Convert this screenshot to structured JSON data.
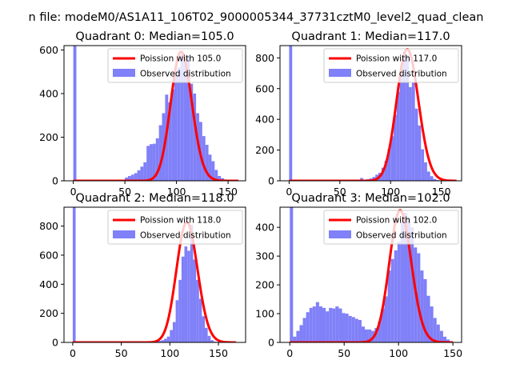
{
  "figure": {
    "suptitle": "n file: modeM0/AS1A11_106T02_9000005344_37731cztM0_level2_quad_clean"
  },
  "chart_data": [
    {
      "type": "bar",
      "title": "Quadrant 0: Median=105.0",
      "xlim": [
        -9,
        167
      ],
      "ylim": [
        0,
        620
      ],
      "xticks": [
        0,
        50,
        100,
        150
      ],
      "yticks": [
        0,
        200,
        400,
        600
      ],
      "legend": [
        "Poission with 105.0",
        "Observed distribution"
      ],
      "legend_loc": "upper right",
      "poisson_mean": 105,
      "poisson_x_range": [
        0,
        160
      ],
      "series": [
        {
          "name": "Observed distribution",
          "bins": [
            {
              "x0": 0,
              "x1": 3,
              "value": 620
            },
            {
              "x0": 47,
              "x1": 50,
              "value": 4
            },
            {
              "x0": 50,
              "x1": 53,
              "value": 15
            },
            {
              "x0": 53,
              "x1": 56,
              "value": 22
            },
            {
              "x0": 56,
              "x1": 59,
              "value": 28
            },
            {
              "x0": 59,
              "x1": 62,
              "value": 35
            },
            {
              "x0": 62,
              "x1": 65,
              "value": 48
            },
            {
              "x0": 65,
              "x1": 68,
              "value": 65
            },
            {
              "x0": 68,
              "x1": 71,
              "value": 85
            },
            {
              "x0": 71,
              "x1": 74,
              "value": 160
            },
            {
              "x0": 74,
              "x1": 77,
              "value": 168
            },
            {
              "x0": 77,
              "x1": 80,
              "value": 170
            },
            {
              "x0": 80,
              "x1": 83,
              "value": 195
            },
            {
              "x0": 83,
              "x1": 86,
              "value": 255
            },
            {
              "x0": 86,
              "x1": 89,
              "value": 310
            },
            {
              "x0": 89,
              "x1": 92,
              "value": 395
            },
            {
              "x0": 92,
              "x1": 95,
              "value": 360
            },
            {
              "x0": 95,
              "x1": 98,
              "value": 420
            },
            {
              "x0": 98,
              "x1": 101,
              "value": 500
            },
            {
              "x0": 101,
              "x1": 104,
              "value": 520
            },
            {
              "x0": 104,
              "x1": 107,
              "value": 580
            },
            {
              "x0": 107,
              "x1": 110,
              "value": 570
            },
            {
              "x0": 110,
              "x1": 113,
              "value": 575
            },
            {
              "x0": 113,
              "x1": 116,
              "value": 445
            },
            {
              "x0": 116,
              "x1": 119,
              "value": 400
            },
            {
              "x0": 119,
              "x1": 122,
              "value": 310
            },
            {
              "x0": 122,
              "x1": 125,
              "value": 270
            },
            {
              "x0": 125,
              "x1": 128,
              "value": 205
            },
            {
              "x0": 128,
              "x1": 131,
              "value": 165
            },
            {
              "x0": 131,
              "x1": 134,
              "value": 120
            },
            {
              "x0": 134,
              "x1": 137,
              "value": 90
            },
            {
              "x0": 137,
              "x1": 140,
              "value": 50
            },
            {
              "x0": 140,
              "x1": 143,
              "value": 22
            },
            {
              "x0": 143,
              "x1": 146,
              "value": 12
            },
            {
              "x0": 146,
              "x1": 149,
              "value": 6
            }
          ]
        }
      ]
    },
    {
      "type": "bar",
      "title": "Quadrant 1: Median=117.0",
      "xlim": [
        -9,
        170
      ],
      "ylim": [
        0,
        880
      ],
      "xticks": [
        0,
        50,
        100,
        150
      ],
      "yticks": [
        0,
        200,
        400,
        600,
        800
      ],
      "legend": [
        "Poission with 117.0",
        "Observed distribution"
      ],
      "legend_loc": "upper right",
      "poisson_mean": 117,
      "poisson_x_range": [
        0,
        165
      ],
      "series": [
        {
          "name": "Observed distribution",
          "bins": [
            {
              "x0": 0,
              "x1": 3,
              "value": 880
            },
            {
              "x0": 61,
              "x1": 64,
              "value": 5
            },
            {
              "x0": 64,
              "x1": 67,
              "value": 5
            },
            {
              "x0": 70,
              "x1": 73,
              "value": 18
            },
            {
              "x0": 73,
              "x1": 76,
              "value": 8
            },
            {
              "x0": 76,
              "x1": 79,
              "value": 10
            },
            {
              "x0": 79,
              "x1": 82,
              "value": 15
            },
            {
              "x0": 82,
              "x1": 85,
              "value": 25
            },
            {
              "x0": 85,
              "x1": 88,
              "value": 40
            },
            {
              "x0": 88,
              "x1": 91,
              "value": 52
            },
            {
              "x0": 91,
              "x1": 94,
              "value": 85
            },
            {
              "x0": 94,
              "x1": 97,
              "value": 130
            },
            {
              "x0": 97,
              "x1": 100,
              "value": 205
            },
            {
              "x0": 100,
              "x1": 103,
              "value": 290
            },
            {
              "x0": 103,
              "x1": 106,
              "value": 430
            },
            {
              "x0": 106,
              "x1": 109,
              "value": 580
            },
            {
              "x0": 109,
              "x1": 112,
              "value": 700
            },
            {
              "x0": 112,
              "x1": 115,
              "value": 840
            },
            {
              "x0": 115,
              "x1": 118,
              "value": 820
            },
            {
              "x0": 118,
              "x1": 121,
              "value": 610
            },
            {
              "x0": 121,
              "x1": 124,
              "value": 640
            },
            {
              "x0": 124,
              "x1": 127,
              "value": 470
            },
            {
              "x0": 127,
              "x1": 130,
              "value": 360
            },
            {
              "x0": 130,
              "x1": 133,
              "value": 205
            },
            {
              "x0": 133,
              "x1": 136,
              "value": 120
            },
            {
              "x0": 136,
              "x1": 139,
              "value": 60
            },
            {
              "x0": 139,
              "x1": 142,
              "value": 30
            },
            {
              "x0": 142,
              "x1": 145,
              "value": 12
            },
            {
              "x0": 145,
              "x1": 148,
              "value": 5
            }
          ]
        }
      ]
    },
    {
      "type": "bar",
      "title": "Quadrant 2: Median=118.0",
      "xlim": [
        -9,
        178
      ],
      "ylim": [
        0,
        930
      ],
      "xticks": [
        0,
        50,
        100,
        150
      ],
      "yticks": [
        0,
        200,
        400,
        600,
        800
      ],
      "legend": [
        "Poission with 118.0",
        "Observed distribution"
      ],
      "legend_loc": "upper right",
      "poisson_mean": 118,
      "poisson_x_range": [
        0,
        168
      ],
      "series": [
        {
          "name": "Observed distribution",
          "bins": [
            {
              "x0": 0,
              "x1": 3,
              "value": 930
            },
            {
              "x0": 70,
              "x1": 73,
              "value": 3
            },
            {
              "x0": 76,
              "x1": 79,
              "value": 4
            },
            {
              "x0": 82,
              "x1": 85,
              "value": 6
            },
            {
              "x0": 88,
              "x1": 91,
              "value": 10
            },
            {
              "x0": 91,
              "x1": 94,
              "value": 15
            },
            {
              "x0": 94,
              "x1": 97,
              "value": 25
            },
            {
              "x0": 97,
              "x1": 100,
              "value": 40
            },
            {
              "x0": 100,
              "x1": 103,
              "value": 85
            },
            {
              "x0": 103,
              "x1": 106,
              "value": 140
            },
            {
              "x0": 106,
              "x1": 109,
              "value": 290
            },
            {
              "x0": 109,
              "x1": 112,
              "value": 430
            },
            {
              "x0": 112,
              "x1": 115,
              "value": 590
            },
            {
              "x0": 115,
              "x1": 118,
              "value": 660
            },
            {
              "x0": 118,
              "x1": 121,
              "value": 630
            },
            {
              "x0": 121,
              "x1": 124,
              "value": 810
            },
            {
              "x0": 124,
              "x1": 127,
              "value": 570
            },
            {
              "x0": 127,
              "x1": 130,
              "value": 430
            },
            {
              "x0": 130,
              "x1": 133,
              "value": 300
            },
            {
              "x0": 133,
              "x1": 136,
              "value": 180
            },
            {
              "x0": 136,
              "x1": 139,
              "value": 100
            },
            {
              "x0": 139,
              "x1": 142,
              "value": 45
            },
            {
              "x0": 142,
              "x1": 145,
              "value": 15
            },
            {
              "x0": 145,
              "x1": 148,
              "value": 5
            }
          ]
        }
      ]
    },
    {
      "type": "bar",
      "title": "Quadrant 3: Median=102.0",
      "xlim": [
        -9,
        158
      ],
      "ylim": [
        0,
        470
      ],
      "xticks": [
        0,
        50,
        100,
        150
      ],
      "yticks": [
        0,
        100,
        200,
        300,
        400
      ],
      "legend": [
        "Poission with 102.0",
        "Observed distribution"
      ],
      "legend_loc": "upper right",
      "poisson_mean": 102,
      "poisson_x_range": [
        0,
        150
      ],
      "series": [
        {
          "name": "Observed distribution",
          "bins": [
            {
              "x0": 0,
              "x1": 3,
              "value": 470
            },
            {
              "x0": 3,
              "x1": 6,
              "value": 20
            },
            {
              "x0": 6,
              "x1": 9,
              "value": 40
            },
            {
              "x0": 9,
              "x1": 12,
              "value": 60
            },
            {
              "x0": 12,
              "x1": 15,
              "value": 85
            },
            {
              "x0": 15,
              "x1": 18,
              "value": 105
            },
            {
              "x0": 18,
              "x1": 21,
              "value": 120
            },
            {
              "x0": 21,
              "x1": 24,
              "value": 125
            },
            {
              "x0": 24,
              "x1": 27,
              "value": 140
            },
            {
              "x0": 27,
              "x1": 30,
              "value": 125
            },
            {
              "x0": 30,
              "x1": 33,
              "value": 120
            },
            {
              "x0": 33,
              "x1": 36,
              "value": 108
            },
            {
              "x0": 36,
              "x1": 39,
              "value": 120
            },
            {
              "x0": 39,
              "x1": 42,
              "value": 118
            },
            {
              "x0": 42,
              "x1": 45,
              "value": 125
            },
            {
              "x0": 45,
              "x1": 48,
              "value": 118
            },
            {
              "x0": 48,
              "x1": 51,
              "value": 102
            },
            {
              "x0": 51,
              "x1": 54,
              "value": 100
            },
            {
              "x0": 54,
              "x1": 57,
              "value": 92
            },
            {
              "x0": 57,
              "x1": 60,
              "value": 88
            },
            {
              "x0": 60,
              "x1": 63,
              "value": 82
            },
            {
              "x0": 63,
              "x1": 66,
              "value": 78
            },
            {
              "x0": 66,
              "x1": 69,
              "value": 55
            },
            {
              "x0": 69,
              "x1": 72,
              "value": 45
            },
            {
              "x0": 72,
              "x1": 75,
              "value": 45
            },
            {
              "x0": 75,
              "x1": 78,
              "value": 40
            },
            {
              "x0": 78,
              "x1": 81,
              "value": 50
            },
            {
              "x0": 81,
              "x1": 84,
              "value": 72
            },
            {
              "x0": 84,
              "x1": 87,
              "value": 118
            },
            {
              "x0": 87,
              "x1": 90,
              "value": 160
            },
            {
              "x0": 90,
              "x1": 93,
              "value": 250
            },
            {
              "x0": 93,
              "x1": 96,
              "value": 290
            },
            {
              "x0": 96,
              "x1": 99,
              "value": 320
            },
            {
              "x0": 99,
              "x1": 102,
              "value": 350
            },
            {
              "x0": 102,
              "x1": 105,
              "value": 420
            },
            {
              "x0": 105,
              "x1": 108,
              "value": 450
            },
            {
              "x0": 108,
              "x1": 111,
              "value": 430
            },
            {
              "x0": 111,
              "x1": 114,
              "value": 400
            },
            {
              "x0": 114,
              "x1": 117,
              "value": 330
            },
            {
              "x0": 117,
              "x1": 120,
              "value": 310
            },
            {
              "x0": 120,
              "x1": 123,
              "value": 250
            },
            {
              "x0": 123,
              "x1": 126,
              "value": 220
            },
            {
              "x0": 126,
              "x1": 129,
              "value": 162
            },
            {
              "x0": 129,
              "x1": 132,
              "value": 125
            },
            {
              "x0": 132,
              "x1": 135,
              "value": 85
            },
            {
              "x0": 135,
              "x1": 138,
              "value": 62
            },
            {
              "x0": 138,
              "x1": 141,
              "value": 40
            },
            {
              "x0": 141,
              "x1": 144,
              "value": 20
            },
            {
              "x0": 144,
              "x1": 147,
              "value": 10
            }
          ]
        }
      ]
    }
  ],
  "colors": {
    "histogram": "#8080f8",
    "poisson": "#ff0000",
    "axis": "#000000"
  }
}
